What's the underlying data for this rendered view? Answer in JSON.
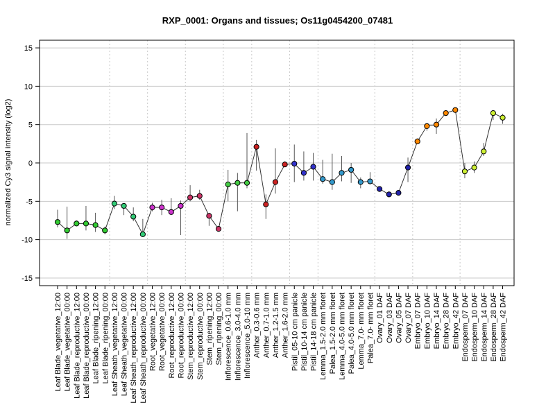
{
  "chart_data": {
    "type": "line",
    "title": "RXP_0001: Organs and tissues; Os11g0454200_07481",
    "xlabel": "",
    "ylabel": "normalized Cy3 signal intensity (log2)",
    "ylim": [
      -16,
      16
    ],
    "yticks": [
      -15,
      -10,
      -5,
      0,
      5,
      10,
      15
    ],
    "grid": true,
    "categories": [
      "Leaf Blade_vegetative_12:00",
      "Leaf Blade_vegetative_00:00",
      "Leaf Blade_reproductive_12:00",
      "Leaf Blade_reproductive_00:00",
      "Leaf Blade_ripening_12:00",
      "Leaf Blade_ripening_00:00",
      "Leaf Sheath_vegetative_12:00",
      "Leaf Sheath_vegetative_00:00",
      "Leaf Sheath_reproductive_12:00",
      "Leaf Sheath_reproductive_00:00",
      "Root_vegetative_12:00",
      "Root_vegetative_00:00",
      "Root_reproductive_12:00",
      "Root_reproductive_00:00",
      "Stem_reproductive_12:00",
      "Stem_reproductive_00:00",
      "Stem_ripening_12:00",
      "Stem_ripening_00:00",
      "Inflorescence_0.6-1.0 mm",
      "Inflorescence_3.0-4.0 mm",
      "Inflorescence_5.0-10 mm",
      "Anther_0.3-0.6 mm",
      "Anther_0.7-1.0 mm",
      "Anther_1.2-1.5 mm",
      "Anther_1.6-2.0 mm",
      "Pistil_05-10 cm panicle",
      "Pistil_10-14 cm panicle",
      "Pistil_14-18 cm panicle",
      "Lemma_1.5-2.0 mm floret",
      "Palea_1.5-2.0 mm floret",
      "Lemma_4.0-5.0 mm floret",
      "Palea_4.0-5.0 mm floret",
      "Lemma_7.0- mm floret",
      "Palea_7.0- mm floret",
      "Ovary_01 DAF",
      "Ovary_03 DAF",
      "Ovary_05 DAF",
      "Ovary_07 DAF",
      "Embryo_07 DAF",
      "Embryo_10 DAF",
      "Embryo_14 DAF",
      "Embryo_28 DAF",
      "Embryo_42 DAF",
      "Endosperm_07 DAF",
      "Endosperm_10 DAF",
      "Endosperm_14 DAF",
      "Endosperm_28 DAF",
      "Endosperm_42 DAF"
    ],
    "series": [
      {
        "values": [
          -7.7,
          -8.8,
          -7.9,
          -7.9,
          -8.1,
          -8.8,
          -5.3,
          -5.6,
          -7.0,
          -9.3,
          -5.8,
          -5.8,
          -6.4,
          -5.6,
          -4.5,
          -4.3,
          -6.9,
          -8.6,
          -2.8,
          -2.6,
          -2.6,
          2.1,
          -5.4,
          -2.5,
          -0.2,
          -0.1,
          -1.3,
          -0.5,
          -2.1,
          -2.5,
          -1.3,
          -0.9,
          -2.5,
          -2.4,
          -3.4,
          -4.1,
          -3.9,
          -0.6,
          2.8,
          4.8,
          5.0,
          6.5,
          6.9,
          -1.1,
          -0.6,
          1.5,
          6.5,
          5.9
        ],
        "err_low": [
          -8.4,
          -9.9,
          -8.1,
          -8.8,
          -9.0,
          -9.3,
          -6.0,
          -6.8,
          -7.6,
          -9.6,
          -6.3,
          -6.8,
          -6.8,
          -9.4,
          -5.0,
          -4.8,
          -8.2,
          -8.9,
          -5.0,
          -6.3,
          -3.3,
          -1.0,
          -7.3,
          -4.0,
          -0.4,
          -2.5,
          -2.3,
          -2.3,
          -2.7,
          -3.5,
          -2.4,
          -2.6,
          -3.3,
          -2.8,
          -3.6,
          -4.3,
          -4.0,
          -2.5,
          2.5,
          4.2,
          3.8,
          6.3,
          6.6,
          -2.0,
          -1.3,
          0.9,
          5.6,
          5.1
        ],
        "err_high": [
          -6.1,
          -5.7,
          -7.5,
          -5.6,
          -6.5,
          -8.3,
          -4.3,
          -5.3,
          -5.8,
          -7.3,
          -5.2,
          -4.8,
          -4.6,
          -4.9,
          -2.9,
          -3.5,
          -6.5,
          -8.3,
          -0.9,
          -1.3,
          3.9,
          3.0,
          -4.1,
          1.9,
          0.2,
          2.4,
          1.5,
          1.3,
          0.4,
          1.2,
          0.9,
          0.0,
          -1.9,
          -1.2,
          -3.1,
          -3.8,
          -3.6,
          0.7,
          3.2,
          5.1,
          5.8,
          6.8,
          7.0,
          0.0,
          0.2,
          2.6,
          6.9,
          6.4
        ]
      }
    ],
    "point_colors": [
      "#33cc33",
      "#33cc33",
      "#33cc33",
      "#33cc33",
      "#33cc33",
      "#33cc33",
      "#33cc77",
      "#33cc77",
      "#33cc77",
      "#33cc77",
      "#cc33cc",
      "#cc33cc",
      "#cc33cc",
      "#cc33cc",
      "#cc3366",
      "#cc3366",
      "#cc3366",
      "#cc3366",
      "#44cc44",
      "#44cc44",
      "#44cc44",
      "#cc2222",
      "#cc2222",
      "#cc2222",
      "#cc2222",
      "#3333cc",
      "#3333cc",
      "#3333cc",
      "#3399cc",
      "#3399cc",
      "#3399cc",
      "#3399cc",
      "#3399cc",
      "#3399cc",
      "#2222aa",
      "#2222aa",
      "#2222aa",
      "#2222aa",
      "#ff8800",
      "#ff8800",
      "#ff8800",
      "#ff8800",
      "#ff8800",
      "#ccee33",
      "#ccee33",
      "#ccee33",
      "#ccee33",
      "#ccee33"
    ],
    "group_separators_after": [
      5,
      9,
      13,
      17,
      20,
      24,
      27,
      33,
      37,
      42
    ]
  }
}
